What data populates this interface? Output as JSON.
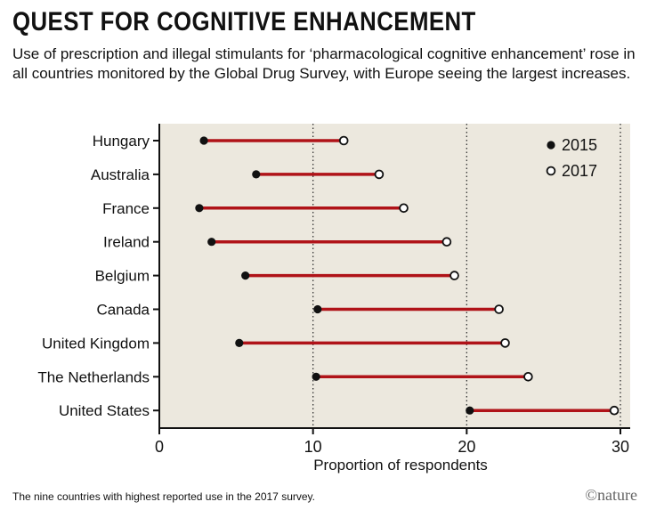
{
  "title": "QUEST FOR COGNITIVE ENHANCEMENT",
  "subtitle": "Use of prescription and illegal stimulants for ‘pharmacological cognitive enhancement’ rose in all countries monitored by the Global Drug Survey, with Europe seeing the largest increases.",
  "footnote": "The nine countries with highest reported use in the 2017 survey.",
  "credit": "©nature",
  "colors": {
    "plot_bg": "#ece8de",
    "bar": "#b01318",
    "dot_2015": "#111111",
    "dot_2017_fill": "#ffffff"
  },
  "chart_data": {
    "type": "dumbbell",
    "xlabel": "Proportion of respondents",
    "xlim": [
      0,
      30
    ],
    "xticks": [
      0,
      10,
      20,
      30
    ],
    "grid": "dotted vertical at 10, 20, 30",
    "legend_position": "top-right",
    "categories": [
      "Hungary",
      "Australia",
      "France",
      "Ireland",
      "Belgium",
      "Canada",
      "United Kingdom",
      "The Netherlands",
      "United States"
    ],
    "series": [
      {
        "name": "2015",
        "values": [
          2.9,
          6.3,
          2.6,
          3.4,
          5.6,
          10.3,
          5.2,
          10.2,
          20.2
        ]
      },
      {
        "name": "2017",
        "values": [
          12.0,
          14.3,
          15.9,
          18.7,
          19.2,
          22.1,
          22.5,
          24.0,
          29.6
        ]
      }
    ]
  }
}
